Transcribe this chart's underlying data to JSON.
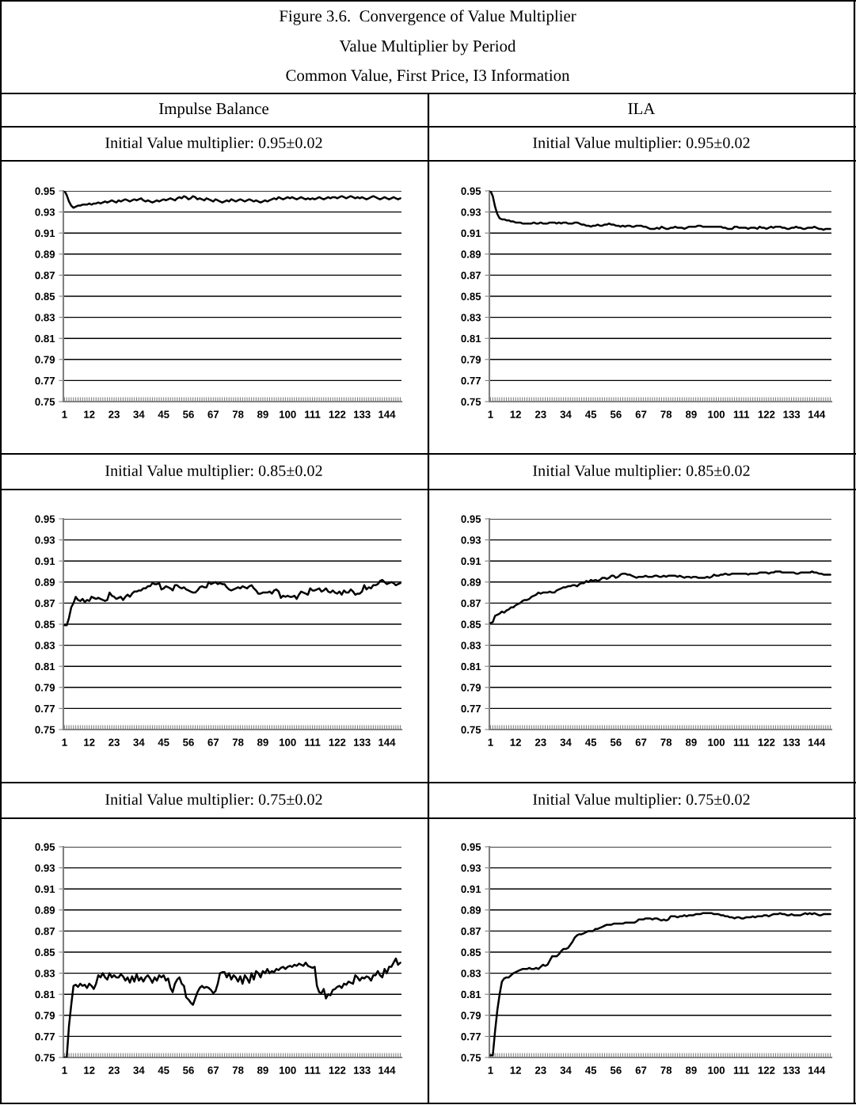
{
  "chart_data": [
    {
      "type": "other",
      "title": "Figure 3.6.  Convergence of Value Multiplier",
      "subtitle": "Value Multiplier by Period",
      "annotations": [
        "Common Value, First Price, I3 Information"
      ]
    },
    {
      "type": "other",
      "title": "Impulse Balance"
    },
    {
      "type": "other",
      "title": "ILA"
    },
    {
      "type": "line",
      "title": "Initial Value multiplier: 0.95±0.02",
      "color": "#000000",
      "ylim": [
        0.75,
        0.95
      ],
      "yticks": [
        0.75,
        0.77,
        0.79,
        0.81,
        0.83,
        0.85,
        0.87,
        0.89,
        0.91,
        0.93,
        0.95
      ],
      "grid": "y",
      "categories": [
        "1",
        null,
        null,
        null,
        null,
        null,
        null,
        null,
        null,
        null,
        null,
        "12",
        null,
        null,
        null,
        null,
        null,
        null,
        null,
        null,
        null,
        null,
        "23",
        null,
        null,
        null,
        null,
        null,
        null,
        null,
        null,
        null,
        null,
        "34",
        null,
        null,
        null,
        null,
        null,
        null,
        null,
        null,
        null,
        null,
        "45",
        null,
        null,
        null,
        null,
        null,
        null,
        null,
        null,
        null,
        null,
        "56",
        null,
        null,
        null,
        null,
        null,
        null,
        null,
        null,
        null,
        null,
        "67",
        null,
        null,
        null,
        null,
        null,
        null,
        null,
        null,
        null,
        null,
        "78",
        null,
        null,
        null,
        null,
        null,
        null,
        null,
        null,
        null,
        null,
        "89",
        null,
        null,
        null,
        null,
        null,
        null,
        null,
        null,
        null,
        null,
        "100",
        null,
        null,
        null,
        null,
        null,
        null,
        null,
        null,
        null,
        null,
        "111",
        null,
        null,
        null,
        null,
        null,
        null,
        null,
        null,
        null,
        null,
        "122",
        null,
        null,
        null,
        null,
        null,
        null,
        null,
        null,
        null,
        null,
        "133",
        null,
        null,
        null,
        null,
        null,
        null,
        null,
        null,
        null,
        null,
        "144",
        null,
        null,
        null,
        null,
        null,
        null
      ],
      "values": [
        0.95,
        0.946,
        0.94,
        0.936,
        0.934,
        0.935,
        0.936,
        0.936,
        0.937,
        0.937,
        0.937,
        0.938,
        0.937,
        0.938,
        0.938,
        0.939,
        0.938,
        0.939,
        0.94,
        0.939,
        0.94,
        0.941,
        0.94,
        0.939,
        0.941,
        0.94,
        0.941,
        0.942,
        0.941,
        0.94,
        0.941,
        0.942,
        0.941,
        0.942,
        0.943,
        0.941,
        0.94,
        0.941,
        0.94,
        0.939,
        0.94,
        0.941,
        0.94,
        0.941,
        0.942,
        0.941,
        0.942,
        0.943,
        0.942,
        0.941,
        0.943,
        0.944,
        0.943,
        0.945,
        0.944,
        0.942,
        0.943,
        0.945,
        0.944,
        0.942,
        0.943,
        0.942,
        0.941,
        0.943,
        0.942,
        0.941,
        0.94,
        0.942,
        0.941,
        0.94,
        0.939,
        0.94,
        0.941,
        0.94,
        0.942,
        0.941,
        0.94,
        0.941,
        0.942,
        0.941,
        0.94,
        0.941,
        0.942,
        0.941,
        0.94,
        0.941,
        0.94,
        0.939,
        0.94,
        0.941,
        0.94,
        0.941,
        0.942,
        0.943,
        0.942,
        0.944,
        0.943,
        0.942,
        0.943,
        0.944,
        0.943,
        0.944,
        0.943,
        0.942,
        0.943,
        0.944,
        0.943,
        0.942,
        0.943,
        0.942,
        0.943,
        0.942,
        0.943,
        0.944,
        0.943,
        0.942,
        0.943,
        0.944,
        0.943,
        0.944,
        0.944,
        0.943,
        0.944,
        0.945,
        0.944,
        0.943,
        0.944,
        0.945,
        0.944,
        0.943,
        0.944,
        0.943,
        0.944,
        0.943,
        0.942,
        0.943,
        0.944,
        0.945,
        0.944,
        0.943,
        0.942,
        0.943,
        0.944,
        0.943,
        0.942,
        0.943,
        0.944,
        0.943,
        0.942,
        0.943
      ]
    },
    {
      "type": "line",
      "title": "Initial Value multiplier: 0.95±0.02",
      "color": "#000000",
      "ylim": [
        0.75,
        0.95
      ],
      "yticks": [
        0.75,
        0.77,
        0.79,
        0.81,
        0.83,
        0.85,
        0.87,
        0.89,
        0.91,
        0.93,
        0.95
      ],
      "grid": "y",
      "categories": [
        "1",
        null,
        null,
        null,
        null,
        null,
        null,
        null,
        null,
        null,
        null,
        "12",
        null,
        null,
        null,
        null,
        null,
        null,
        null,
        null,
        null,
        null,
        "23",
        null,
        null,
        null,
        null,
        null,
        null,
        null,
        null,
        null,
        null,
        "34",
        null,
        null,
        null,
        null,
        null,
        null,
        null,
        null,
        null,
        null,
        "45",
        null,
        null,
        null,
        null,
        null,
        null,
        null,
        null,
        null,
        null,
        "56",
        null,
        null,
        null,
        null,
        null,
        null,
        null,
        null,
        null,
        null,
        "67",
        null,
        null,
        null,
        null,
        null,
        null,
        null,
        null,
        null,
        null,
        "78",
        null,
        null,
        null,
        null,
        null,
        null,
        null,
        null,
        null,
        null,
        "89",
        null,
        null,
        null,
        null,
        null,
        null,
        null,
        null,
        null,
        null,
        "100",
        null,
        null,
        null,
        null,
        null,
        null,
        null,
        null,
        null,
        null,
        "111",
        null,
        null,
        null,
        null,
        null,
        null,
        null,
        null,
        null,
        null,
        "122",
        null,
        null,
        null,
        null,
        null,
        null,
        null,
        null,
        null,
        null,
        "133",
        null,
        null,
        null,
        null,
        null,
        null,
        null,
        null,
        null,
        null,
        "144",
        null,
        null,
        null,
        null,
        null,
        null
      ],
      "values": [
        0.95,
        0.945,
        0.935,
        0.928,
        0.924,
        0.923,
        0.923,
        0.922,
        0.922,
        0.921,
        0.921,
        0.92,
        0.92,
        0.92,
        0.919,
        0.919,
        0.919,
        0.919,
        0.919,
        0.92,
        0.919,
        0.919,
        0.92,
        0.919,
        0.919,
        0.919,
        0.92,
        0.92,
        0.92,
        0.919,
        0.92,
        0.919,
        0.92,
        0.92,
        0.919,
        0.919,
        0.919,
        0.92,
        0.92,
        0.919,
        0.918,
        0.918,
        0.917,
        0.917,
        0.916,
        0.917,
        0.917,
        0.918,
        0.917,
        0.917,
        0.918,
        0.918,
        0.919,
        0.918,
        0.918,
        0.917,
        0.917,
        0.916,
        0.917,
        0.916,
        0.917,
        0.917,
        0.916,
        0.916,
        0.917,
        0.917,
        0.917,
        0.916,
        0.916,
        0.915,
        0.914,
        0.914,
        0.914,
        0.915,
        0.914,
        0.916,
        0.915,
        0.914,
        0.914,
        0.915,
        0.915,
        0.916,
        0.915,
        0.915,
        0.915,
        0.914,
        0.915,
        0.916,
        0.916,
        0.916,
        0.916,
        0.917,
        0.917,
        0.916,
        0.916,
        0.916,
        0.916,
        0.916,
        0.916,
        0.916,
        0.916,
        0.916,
        0.915,
        0.915,
        0.914,
        0.914,
        0.914,
        0.916,
        0.916,
        0.915,
        0.915,
        0.915,
        0.915,
        0.914,
        0.915,
        0.915,
        0.915,
        0.914,
        0.916,
        0.915,
        0.915,
        0.914,
        0.915,
        0.916,
        0.915,
        0.916,
        0.916,
        0.916,
        0.915,
        0.915,
        0.914,
        0.914,
        0.915,
        0.915,
        0.916,
        0.915,
        0.915,
        0.914,
        0.914,
        0.915,
        0.915,
        0.915,
        0.916,
        0.915,
        0.914,
        0.914,
        0.913,
        0.914,
        0.914,
        0.914
      ]
    },
    {
      "type": "line",
      "title": "Initial Value multiplier: 0.85±0.02",
      "color": "#000000",
      "ylim": [
        0.75,
        0.95
      ],
      "yticks": [
        0.75,
        0.77,
        0.79,
        0.81,
        0.83,
        0.85,
        0.87,
        0.89,
        0.91,
        0.93,
        0.95
      ],
      "grid": "y",
      "categories": [
        "1",
        null,
        null,
        null,
        null,
        null,
        null,
        null,
        null,
        null,
        null,
        "12",
        null,
        null,
        null,
        null,
        null,
        null,
        null,
        null,
        null,
        null,
        "23",
        null,
        null,
        null,
        null,
        null,
        null,
        null,
        null,
        null,
        null,
        "34",
        null,
        null,
        null,
        null,
        null,
        null,
        null,
        null,
        null,
        null,
        "45",
        null,
        null,
        null,
        null,
        null,
        null,
        null,
        null,
        null,
        null,
        "56",
        null,
        null,
        null,
        null,
        null,
        null,
        null,
        null,
        null,
        null,
        "67",
        null,
        null,
        null,
        null,
        null,
        null,
        null,
        null,
        null,
        null,
        "78",
        null,
        null,
        null,
        null,
        null,
        null,
        null,
        null,
        null,
        null,
        "89",
        null,
        null,
        null,
        null,
        null,
        null,
        null,
        null,
        null,
        null,
        "100",
        null,
        null,
        null,
        null,
        null,
        null,
        null,
        null,
        null,
        null,
        "111",
        null,
        null,
        null,
        null,
        null,
        null,
        null,
        null,
        null,
        null,
        "122",
        null,
        null,
        null,
        null,
        null,
        null,
        null,
        null,
        null,
        null,
        "133",
        null,
        null,
        null,
        null,
        null,
        null,
        null,
        null,
        null,
        null,
        "144",
        null,
        null,
        null,
        null,
        null,
        null
      ],
      "values": [
        0.849,
        0.849,
        0.856,
        0.866,
        0.87,
        0.876,
        0.873,
        0.872,
        0.874,
        0.871,
        0.873,
        0.872,
        0.876,
        0.875,
        0.874,
        0.875,
        0.874,
        0.873,
        0.872,
        0.873,
        0.88,
        0.877,
        0.876,
        0.874,
        0.875,
        0.876,
        0.873,
        0.876,
        0.878,
        0.876,
        0.879,
        0.881,
        0.881,
        0.882,
        0.882,
        0.884,
        0.884,
        0.886,
        0.886,
        0.889,
        0.888,
        0.888,
        0.889,
        0.883,
        0.884,
        0.886,
        0.885,
        0.884,
        0.882,
        0.887,
        0.887,
        0.885,
        0.884,
        0.885,
        0.883,
        0.882,
        0.881,
        0.88,
        0.88,
        0.882,
        0.885,
        0.886,
        0.885,
        0.885,
        0.89,
        0.888,
        0.889,
        0.89,
        0.888,
        0.889,
        0.888,
        0.888,
        0.885,
        0.883,
        0.882,
        0.883,
        0.884,
        0.885,
        0.884,
        0.886,
        0.885,
        0.884,
        0.886,
        0.887,
        0.884,
        0.882,
        0.879,
        0.879,
        0.88,
        0.88,
        0.88,
        0.881,
        0.879,
        0.882,
        0.883,
        0.881,
        0.875,
        0.877,
        0.876,
        0.877,
        0.876,
        0.876,
        0.877,
        0.874,
        0.878,
        0.881,
        0.88,
        0.879,
        0.878,
        0.884,
        0.882,
        0.882,
        0.883,
        0.884,
        0.881,
        0.882,
        0.884,
        0.881,
        0.88,
        0.882,
        0.88,
        0.879,
        0.881,
        0.878,
        0.882,
        0.88,
        0.88,
        0.883,
        0.881,
        0.878,
        0.879,
        0.879,
        0.881,
        0.887,
        0.883,
        0.885,
        0.884,
        0.887,
        0.887,
        0.888,
        0.891,
        0.892,
        0.89,
        0.888,
        0.889,
        0.89,
        0.889,
        0.887,
        0.888,
        0.889
      ]
    },
    {
      "type": "line",
      "title": "Initial Value multiplier: 0.85±0.02",
      "color": "#000000",
      "ylim": [
        0.75,
        0.95
      ],
      "yticks": [
        0.75,
        0.77,
        0.79,
        0.81,
        0.83,
        0.85,
        0.87,
        0.89,
        0.91,
        0.93,
        0.95
      ],
      "grid": "y",
      "categories": [
        "1",
        null,
        null,
        null,
        null,
        null,
        null,
        null,
        null,
        null,
        null,
        "12",
        null,
        null,
        null,
        null,
        null,
        null,
        null,
        null,
        null,
        null,
        "23",
        null,
        null,
        null,
        null,
        null,
        null,
        null,
        null,
        null,
        null,
        "34",
        null,
        null,
        null,
        null,
        null,
        null,
        null,
        null,
        null,
        null,
        "45",
        null,
        null,
        null,
        null,
        null,
        null,
        null,
        null,
        null,
        null,
        "56",
        null,
        null,
        null,
        null,
        null,
        null,
        null,
        null,
        null,
        null,
        "67",
        null,
        null,
        null,
        null,
        null,
        null,
        null,
        null,
        null,
        null,
        "78",
        null,
        null,
        null,
        null,
        null,
        null,
        null,
        null,
        null,
        null,
        "89",
        null,
        null,
        null,
        null,
        null,
        null,
        null,
        null,
        null,
        null,
        "100",
        null,
        null,
        null,
        null,
        null,
        null,
        null,
        null,
        null,
        null,
        "111",
        null,
        null,
        null,
        null,
        null,
        null,
        null,
        null,
        null,
        null,
        "122",
        null,
        null,
        null,
        null,
        null,
        null,
        null,
        null,
        null,
        null,
        "133",
        null,
        null,
        null,
        null,
        null,
        null,
        null,
        null,
        null,
        null,
        "144",
        null,
        null,
        null,
        null,
        null,
        null
      ],
      "values": [
        0.851,
        0.852,
        0.858,
        0.859,
        0.86,
        0.862,
        0.861,
        0.863,
        0.864,
        0.866,
        0.866,
        0.868,
        0.869,
        0.87,
        0.872,
        0.873,
        0.873,
        0.874,
        0.876,
        0.877,
        0.878,
        0.88,
        0.879,
        0.88,
        0.88,
        0.88,
        0.881,
        0.88,
        0.88,
        0.882,
        0.883,
        0.884,
        0.885,
        0.885,
        0.886,
        0.886,
        0.887,
        0.887,
        0.886,
        0.888,
        0.889,
        0.889,
        0.891,
        0.89,
        0.892,
        0.891,
        0.892,
        0.891,
        0.892,
        0.894,
        0.894,
        0.893,
        0.894,
        0.896,
        0.896,
        0.894,
        0.895,
        0.897,
        0.898,
        0.898,
        0.897,
        0.897,
        0.896,
        0.895,
        0.894,
        0.895,
        0.895,
        0.895,
        0.896,
        0.895,
        0.895,
        0.895,
        0.896,
        0.896,
        0.895,
        0.895,
        0.896,
        0.895,
        0.896,
        0.896,
        0.896,
        0.896,
        0.895,
        0.896,
        0.895,
        0.894,
        0.895,
        0.895,
        0.894,
        0.895,
        0.895,
        0.894,
        0.894,
        0.894,
        0.894,
        0.895,
        0.894,
        0.895,
        0.897,
        0.896,
        0.896,
        0.897,
        0.897,
        0.898,
        0.897,
        0.897,
        0.898,
        0.898,
        0.898,
        0.898,
        0.898,
        0.898,
        0.898,
        0.897,
        0.898,
        0.898,
        0.898,
        0.898,
        0.899,
        0.899,
        0.899,
        0.899,
        0.898,
        0.899,
        0.899,
        0.9,
        0.9,
        0.9,
        0.899,
        0.899,
        0.899,
        0.899,
        0.899,
        0.899,
        0.898,
        0.898,
        0.899,
        0.899,
        0.899,
        0.899,
        0.899,
        0.9,
        0.899,
        0.899,
        0.898,
        0.898,
        0.897,
        0.897,
        0.897,
        0.897
      ]
    },
    {
      "type": "line",
      "title": "Initial Value multiplier: 0.75±0.02",
      "color": "#000000",
      "ylim": [
        0.75,
        0.95
      ],
      "yticks": [
        0.75,
        0.77,
        0.79,
        0.81,
        0.83,
        0.85,
        0.87,
        0.89,
        0.91,
        0.93,
        0.95
      ],
      "grid": "y",
      "categories": [
        "1",
        null,
        null,
        null,
        null,
        null,
        null,
        null,
        null,
        null,
        null,
        "12",
        null,
        null,
        null,
        null,
        null,
        null,
        null,
        null,
        null,
        null,
        "23",
        null,
        null,
        null,
        null,
        null,
        null,
        null,
        null,
        null,
        null,
        "34",
        null,
        null,
        null,
        null,
        null,
        null,
        null,
        null,
        null,
        null,
        "45",
        null,
        null,
        null,
        null,
        null,
        null,
        null,
        null,
        null,
        null,
        "56",
        null,
        null,
        null,
        null,
        null,
        null,
        null,
        null,
        null,
        null,
        "67",
        null,
        null,
        null,
        null,
        null,
        null,
        null,
        null,
        null,
        null,
        "78",
        null,
        null,
        null,
        null,
        null,
        null,
        null,
        null,
        null,
        null,
        "89",
        null,
        null,
        null,
        null,
        null,
        null,
        null,
        null,
        null,
        null,
        "100",
        null,
        null,
        null,
        null,
        null,
        null,
        null,
        null,
        null,
        null,
        "111",
        null,
        null,
        null,
        null,
        null,
        null,
        null,
        null,
        null,
        null,
        "122",
        null,
        null,
        null,
        null,
        null,
        null,
        null,
        null,
        null,
        null,
        "133",
        null,
        null,
        null,
        null,
        null,
        null,
        null,
        null,
        null,
        null,
        "144",
        null,
        null,
        null,
        null,
        null,
        null
      ],
      "values": [
        0.75,
        0.75,
        0.78,
        0.8,
        0.818,
        0.819,
        0.817,
        0.82,
        0.818,
        0.819,
        0.816,
        0.82,
        0.818,
        0.815,
        0.82,
        0.828,
        0.826,
        0.83,
        0.826,
        0.824,
        0.83,
        0.826,
        0.828,
        0.826,
        0.826,
        0.829,
        0.827,
        0.823,
        0.826,
        0.821,
        0.827,
        0.822,
        0.829,
        0.823,
        0.826,
        0.822,
        0.826,
        0.828,
        0.825,
        0.821,
        0.826,
        0.823,
        0.828,
        0.826,
        0.828,
        0.823,
        0.825,
        0.816,
        0.812,
        0.82,
        0.824,
        0.826,
        0.82,
        0.818,
        0.807,
        0.805,
        0.802,
        0.8,
        0.806,
        0.812,
        0.816,
        0.818,
        0.816,
        0.817,
        0.816,
        0.814,
        0.811,
        0.813,
        0.82,
        0.83,
        0.831,
        0.831,
        0.826,
        0.83,
        0.824,
        0.828,
        0.826,
        0.822,
        0.827,
        0.82,
        0.828,
        0.825,
        0.821,
        0.83,
        0.824,
        0.832,
        0.83,
        0.826,
        0.832,
        0.83,
        0.834,
        0.83,
        0.832,
        0.831,
        0.834,
        0.833,
        0.835,
        0.836,
        0.834,
        0.836,
        0.837,
        0.836,
        0.838,
        0.837,
        0.839,
        0.838,
        0.837,
        0.84,
        0.837,
        0.836,
        0.835,
        0.836,
        0.818,
        0.812,
        0.811,
        0.815,
        0.806,
        0.81,
        0.809,
        0.814,
        0.815,
        0.817,
        0.818,
        0.816,
        0.82,
        0.819,
        0.822,
        0.821,
        0.82,
        0.828,
        0.826,
        0.823,
        0.826,
        0.825,
        0.827,
        0.826,
        0.823,
        0.828,
        0.828,
        0.832,
        0.828,
        0.826,
        0.834,
        0.83,
        0.836,
        0.836,
        0.84,
        0.844,
        0.838,
        0.84
      ]
    },
    {
      "type": "line",
      "title": "Initial Value multiplier: 0.75±0.02",
      "color": "#000000",
      "ylim": [
        0.75,
        0.95
      ],
      "yticks": [
        0.75,
        0.77,
        0.79,
        0.81,
        0.83,
        0.85,
        0.87,
        0.89,
        0.91,
        0.93,
        0.95
      ],
      "grid": "y",
      "categories": [
        "1",
        null,
        null,
        null,
        null,
        null,
        null,
        null,
        null,
        null,
        null,
        "12",
        null,
        null,
        null,
        null,
        null,
        null,
        null,
        null,
        null,
        null,
        "23",
        null,
        null,
        null,
        null,
        null,
        null,
        null,
        null,
        null,
        null,
        "34",
        null,
        null,
        null,
        null,
        null,
        null,
        null,
        null,
        null,
        null,
        "45",
        null,
        null,
        null,
        null,
        null,
        null,
        null,
        null,
        null,
        null,
        "56",
        null,
        null,
        null,
        null,
        null,
        null,
        null,
        null,
        null,
        null,
        "67",
        null,
        null,
        null,
        null,
        null,
        null,
        null,
        null,
        null,
        null,
        "78",
        null,
        null,
        null,
        null,
        null,
        null,
        null,
        null,
        null,
        null,
        "89",
        null,
        null,
        null,
        null,
        null,
        null,
        null,
        null,
        null,
        null,
        "100",
        null,
        null,
        null,
        null,
        null,
        null,
        null,
        null,
        null,
        null,
        "111",
        null,
        null,
        null,
        null,
        null,
        null,
        null,
        null,
        null,
        null,
        "122",
        null,
        null,
        null,
        null,
        null,
        null,
        null,
        null,
        null,
        null,
        "133",
        null,
        null,
        null,
        null,
        null,
        null,
        null,
        null,
        null,
        null,
        "144",
        null,
        null,
        null,
        null,
        null,
        null
      ],
      "values": [
        0.752,
        0.752,
        0.775,
        0.795,
        0.81,
        0.822,
        0.825,
        0.826,
        0.826,
        0.828,
        0.83,
        0.831,
        0.832,
        0.833,
        0.834,
        0.834,
        0.834,
        0.835,
        0.834,
        0.834,
        0.835,
        0.834,
        0.836,
        0.838,
        0.837,
        0.838,
        0.842,
        0.846,
        0.846,
        0.846,
        0.848,
        0.851,
        0.853,
        0.853,
        0.854,
        0.857,
        0.86,
        0.864,
        0.866,
        0.867,
        0.867,
        0.868,
        0.869,
        0.87,
        0.87,
        0.87,
        0.872,
        0.872,
        0.873,
        0.874,
        0.875,
        0.876,
        0.876,
        0.876,
        0.877,
        0.877,
        0.877,
        0.877,
        0.877,
        0.878,
        0.878,
        0.878,
        0.878,
        0.878,
        0.879,
        0.881,
        0.881,
        0.881,
        0.882,
        0.882,
        0.882,
        0.881,
        0.882,
        0.882,
        0.881,
        0.88,
        0.881,
        0.88,
        0.881,
        0.884,
        0.884,
        0.884,
        0.883,
        0.884,
        0.884,
        0.885,
        0.884,
        0.885,
        0.885,
        0.885,
        0.886,
        0.886,
        0.886,
        0.887,
        0.887,
        0.887,
        0.887,
        0.887,
        0.886,
        0.886,
        0.886,
        0.885,
        0.885,
        0.884,
        0.884,
        0.883,
        0.883,
        0.882,
        0.883,
        0.883,
        0.882,
        0.882,
        0.883,
        0.883,
        0.883,
        0.884,
        0.883,
        0.884,
        0.884,
        0.884,
        0.885,
        0.885,
        0.884,
        0.885,
        0.886,
        0.886,
        0.886,
        0.887,
        0.886,
        0.886,
        0.885,
        0.885,
        0.886,
        0.885,
        0.885,
        0.885,
        0.885,
        0.886,
        0.887,
        0.886,
        0.887,
        0.886,
        0.887,
        0.886,
        0.885,
        0.885,
        0.886,
        0.886,
        0.886,
        0.886
      ]
    }
  ]
}
